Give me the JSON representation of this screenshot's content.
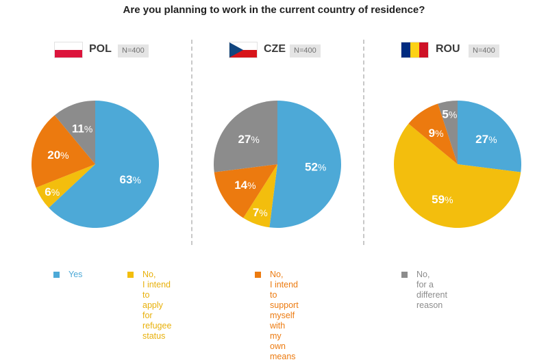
{
  "title": "Are you planning to work in the current country of residence?",
  "colors": {
    "yes": "#4da9d7",
    "refugee": "#f3be0d",
    "support": "#ec7a0f",
    "other": "#8c8c8c"
  },
  "panels": [
    {
      "code": "POL",
      "n": "N=400",
      "flag": "poland-flag",
      "labels": [
        "63%",
        "6%",
        "20%",
        "11%"
      ]
    },
    {
      "code": "CZE",
      "n": "N=400",
      "flag": "czech-flag",
      "labels": [
        "52%",
        "7%",
        "14%",
        "27%"
      ]
    },
    {
      "code": "ROU",
      "n": "N=400",
      "flag": "romania-flag",
      "labels": [
        "27%",
        "59%",
        "9%",
        "5%"
      ]
    }
  ],
  "legend": [
    {
      "key": "yes",
      "text": "Yes"
    },
    {
      "key": "refugee",
      "text": "No,\nI intend to apply\nfor refugee status"
    },
    {
      "key": "support",
      "text": "No,\nI intend to support myself\nwith my own means"
    },
    {
      "key": "other",
      "text": "No,\nfor a different reason"
    }
  ],
  "chart_data": [
    {
      "type": "pie",
      "title": "POL",
      "categories": [
        "Yes",
        "No, I intend to apply for refugee status",
        "No, I intend to support myself with my own means",
        "No, for a different reason"
      ],
      "values": [
        63,
        6,
        20,
        11
      ]
    },
    {
      "type": "pie",
      "title": "CZE",
      "categories": [
        "Yes",
        "No, I intend to apply for refugee status",
        "No, I intend to support myself with my own means",
        "No, for a different reason"
      ],
      "values": [
        52,
        7,
        14,
        27
      ]
    },
    {
      "type": "pie",
      "title": "ROU",
      "categories": [
        "Yes",
        "No, I intend to apply for refugee status",
        "No, I intend to support myself with my own means",
        "No, for a different reason"
      ],
      "values": [
        27,
        59,
        9,
        5
      ]
    }
  ]
}
